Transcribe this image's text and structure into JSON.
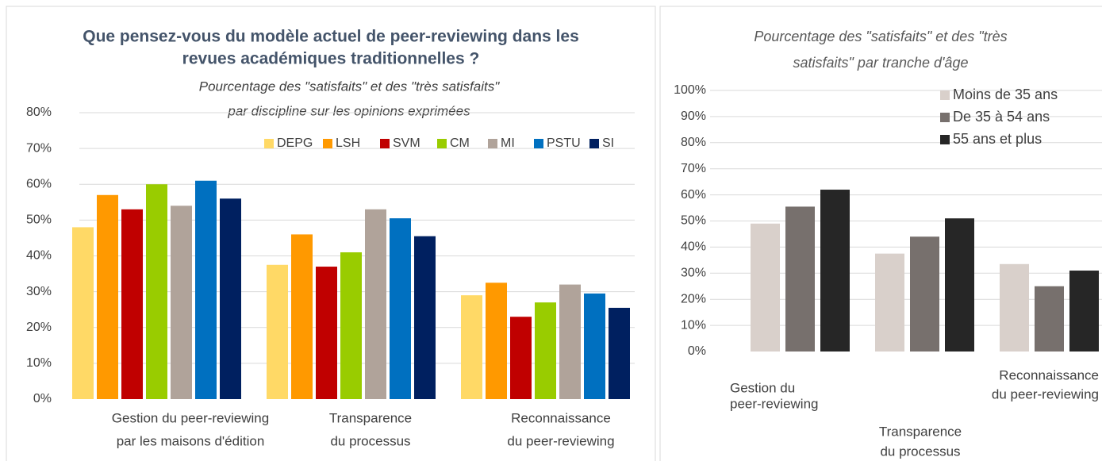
{
  "chart_data": [
    {
      "type": "bar",
      "title": [
        "Que pensez-vous du modèle actuel de peer-reviewing dans les",
        "revues académiques traditionnelles ?"
      ],
      "subtitle": [
        "Pourcentage des \"satisfaits\" et des \"très satisfaits\"",
        "par discipline sur les opinions exprimées"
      ],
      "categories": [
        [
          "Gestion du peer-reviewing",
          "par les maisons d'édition"
        ],
        [
          "Transparence",
          "du processus"
        ],
        [
          "Reconnaissance",
          "du peer-reviewing"
        ]
      ],
      "series": [
        {
          "name": "DEPG",
          "color": "#ffd966",
          "values": [
            48,
            37.5,
            29
          ]
        },
        {
          "name": "LSH",
          "color": "#ff9900",
          "values": [
            57,
            46,
            32.5
          ]
        },
        {
          "name": "SVM",
          "color": "#c00000",
          "values": [
            53,
            37,
            23
          ]
        },
        {
          "name": "CM",
          "color": "#99cc00",
          "values": [
            60,
            41,
            27
          ]
        },
        {
          "name": "MI",
          "color": "#b0a39a",
          "values": [
            54,
            53,
            32
          ]
        },
        {
          "name": "PSTU",
          "color": "#0070c0",
          "values": [
            61,
            50.5,
            29.5
          ]
        },
        {
          "name": "SI",
          "color": "#002060",
          "values": [
            56,
            45.5,
            25.5
          ]
        }
      ],
      "ylim": [
        0,
        80
      ],
      "yticks": [
        {
          "value": 0,
          "label": "0%"
        },
        {
          "value": 10,
          "label": "10%"
        },
        {
          "value": 20,
          "label": "20%"
        },
        {
          "value": 30,
          "label": "30%"
        },
        {
          "value": 40,
          "label": "40%"
        },
        {
          "value": 50,
          "label": "50%"
        },
        {
          "value": 60,
          "label": "60%"
        },
        {
          "value": 70,
          "label": "70%"
        },
        {
          "value": 80,
          "label": "80%"
        }
      ],
      "grid": true,
      "legend": "top"
    },
    {
      "type": "bar",
      "title": [
        "Pourcentage des \"satisfaits\" et des \"très",
        "satisfaits\" par tranche d'âge"
      ],
      "categories": [
        [
          "Gestion du",
          "peer-reviewing"
        ],
        [
          "Transparence",
          "du processus"
        ],
        [
          "Reconnaissance",
          "du peer-reviewing"
        ]
      ],
      "series": [
        {
          "name": "Moins de 35 ans",
          "color": "#d9d0cb",
          "values": [
            49,
            37.5,
            33.5
          ]
        },
        {
          "name": "De 35 à 54 ans",
          "color": "#77706d",
          "values": [
            55.5,
            44,
            25
          ]
        },
        {
          "name": "55 ans et plus",
          "color": "#262626",
          "values": [
            62,
            51,
            31
          ]
        }
      ],
      "ylim": [
        0,
        100
      ],
      "yticks": [
        {
          "value": 0,
          "label": "0%"
        },
        {
          "value": 10,
          "label": "10%"
        },
        {
          "value": 20,
          "label": "20%"
        },
        {
          "value": 30,
          "label": "30%"
        },
        {
          "value": 40,
          "label": "40%"
        },
        {
          "value": 50,
          "label": "50%"
        },
        {
          "value": 60,
          "label": "60%"
        },
        {
          "value": 70,
          "label": "70%"
        },
        {
          "value": 80,
          "label": "80%"
        },
        {
          "value": 90,
          "label": "90%"
        },
        {
          "value": 100,
          "label": "100%"
        }
      ],
      "grid": true,
      "legend": "top-right"
    }
  ]
}
